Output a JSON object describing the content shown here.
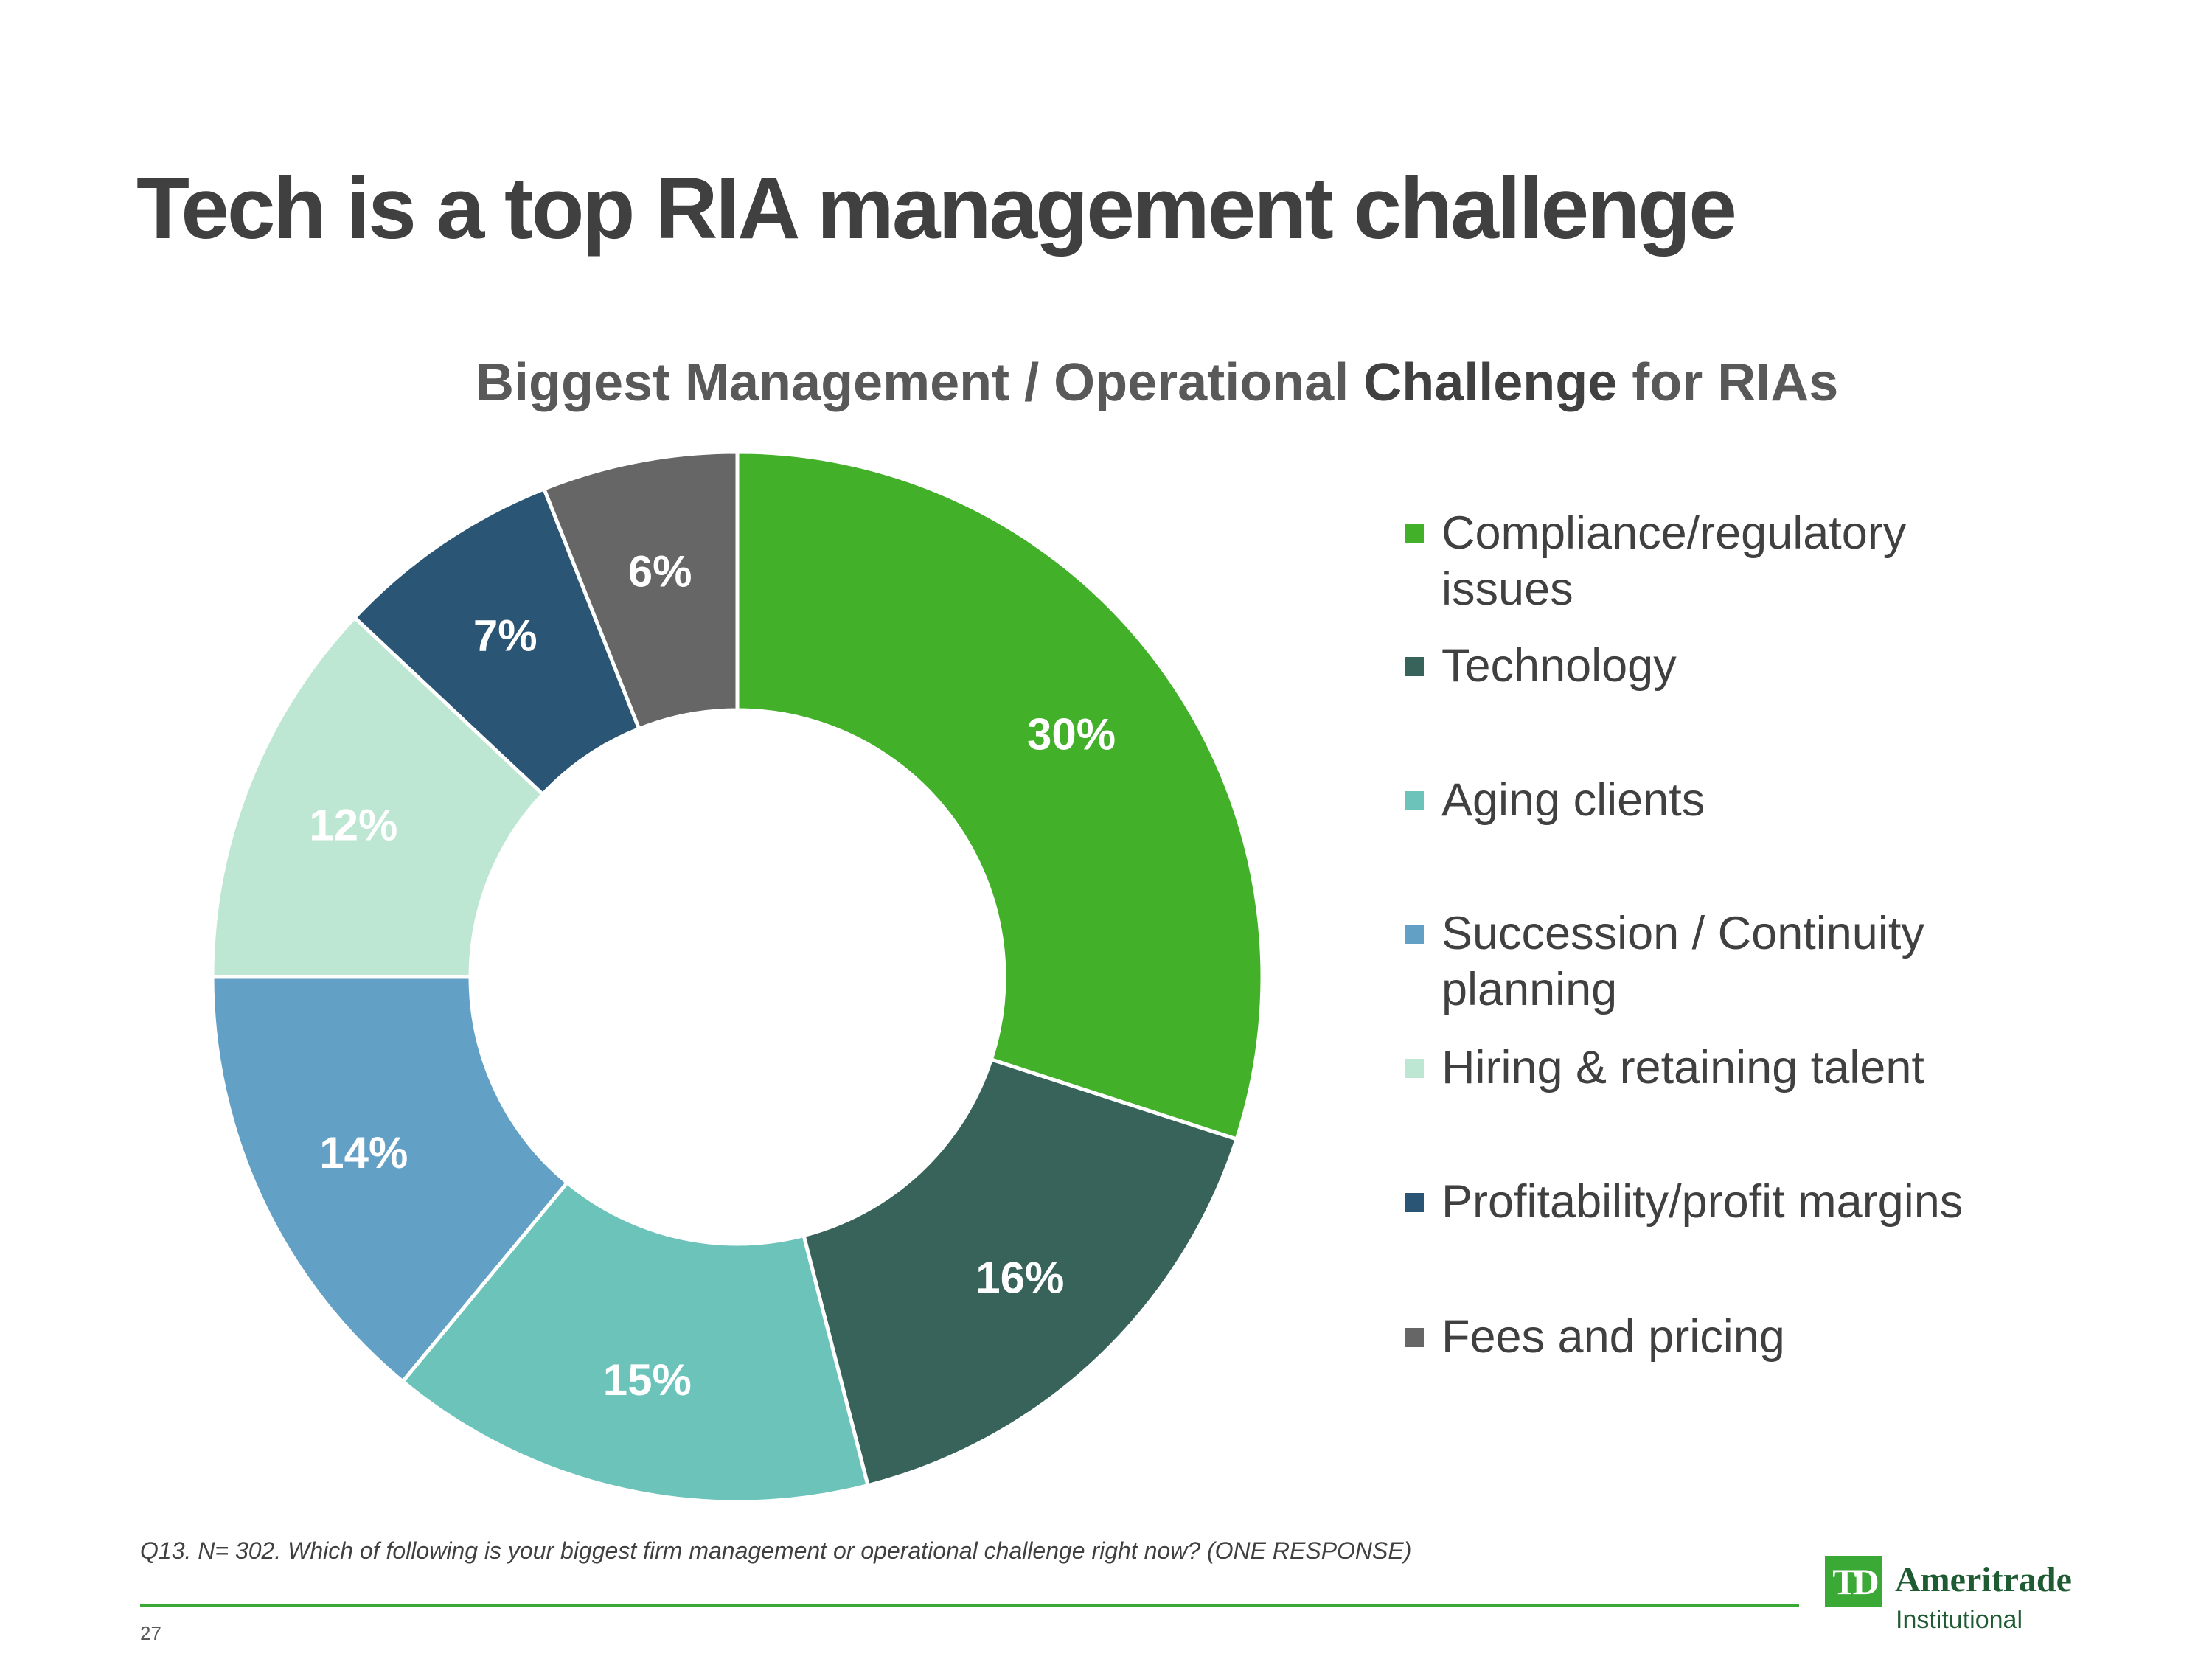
{
  "slide": {
    "title": "Tech is a top RIA management challenge",
    "footnote": "Q13. N= 302. Which of following is your biggest firm management or operational challenge right now? (ONE RESPONSE)",
    "page_number": "27"
  },
  "chart_title": {
    "part1": "Biggest Management / Operational ",
    "part2": "Challenge",
    "part3": " for RIAs"
  },
  "chart_data": {
    "type": "pie",
    "title": "Biggest Management / Operational Challenge for RIAs",
    "legend_position": "right",
    "series": [
      {
        "name": "Compliance/regulatory issues",
        "value": 30,
        "label": "30%",
        "color": "#43b02a",
        "label_color": "#ffffff"
      },
      {
        "name": "Technology",
        "value": 16,
        "label": "16%",
        "color": "#38635a",
        "label_color": "#ffffff"
      },
      {
        "name": "Aging clients",
        "value": 15,
        "label": "15%",
        "color": "#6cc3ba",
        "label_color": "#ffffff"
      },
      {
        "name": "Succession / Continuity planning",
        "value": 14,
        "label": "14%",
        "color": "#62a0c6",
        "label_color": "#ffffff"
      },
      {
        "name": "Hiring & retaining talent",
        "value": 12,
        "label": "12%",
        "color": "#bde6d3",
        "label_color": "#ffffff"
      },
      {
        "name": "Profitability/profit margins",
        "value": 7,
        "label": "7%",
        "color": "#2a5574",
        "label_color": "#ffffff"
      },
      {
        "name": "Fees and pricing",
        "value": 6,
        "label": "6%",
        "color": "#666666",
        "label_color": "#ffffff"
      }
    ]
  },
  "legend": {
    "items": [
      {
        "lines": [
          "Compliance/regulatory",
          "issues"
        ],
        "color": "#43b02a"
      },
      {
        "lines": [
          "Technology"
        ],
        "color": "#38635a"
      },
      {
        "lines": [
          "Aging clients"
        ],
        "color": "#6cc3ba"
      },
      {
        "lines": [
          "Succession / Continuity",
          "planning"
        ],
        "color": "#62a0c6"
      },
      {
        "lines": [
          "Hiring & retaining talent"
        ],
        "color": "#bde6d3"
      },
      {
        "lines": [
          "Profitability/profit margins"
        ],
        "color": "#2a5574"
      },
      {
        "lines": [
          "Fees and pricing"
        ],
        "color": "#666666"
      }
    ]
  },
  "logo": {
    "mark": "TD",
    "name": "Ameritrade",
    "subtitle": "Institutional"
  }
}
